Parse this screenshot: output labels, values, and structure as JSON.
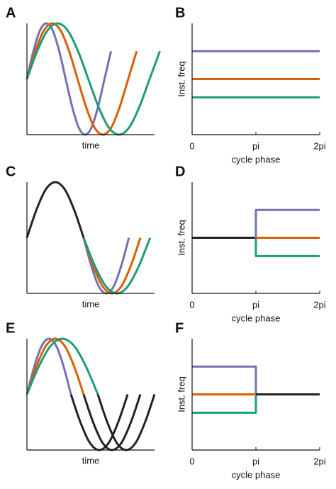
{
  "chart_data": [
    {
      "type": "line",
      "panel": "A",
      "xlabel": "time",
      "smooth": true,
      "xlim": [
        0,
        1
      ],
      "ylim": [
        -1,
        1
      ],
      "series": [
        {
          "color": "#7570b3",
          "x": [
            0,
            0.0507,
            0.1013,
            0.152,
            0.2026,
            0.2533,
            0.304,
            0.3546,
            0.4053,
            0.4559,
            0.5066,
            0.5572,
            0.6079,
            0.6586
          ],
          "values": [
            0,
            0.5,
            0.87,
            1,
            0.87,
            0.5,
            0,
            -0.5,
            -0.87,
            -1,
            -0.87,
            -0.5,
            0,
            0.5
          ]
        },
        {
          "color": "#d95f02",
          "x": [
            0,
            0.0661,
            0.1323,
            0.1984,
            0.2646,
            0.3307,
            0.3968,
            0.463,
            0.5291,
            0.5952,
            0.6614,
            0.7275,
            0.7937,
            0.8598
          ],
          "values": [
            0,
            0.5,
            0.87,
            1,
            0.87,
            0.5,
            0,
            -0.5,
            -0.87,
            -1,
            -0.87,
            -0.5,
            0,
            0.5
          ]
        },
        {
          "color": "#1b9e77",
          "x": [
            0,
            0.0801,
            0.1603,
            0.2404,
            0.3205,
            0.4006,
            0.4808,
            0.5609,
            0.641,
            0.7212,
            0.8013,
            0.8814,
            0.9615,
            1.0417
          ],
          "values": [
            0,
            0.5,
            0.87,
            1,
            0.87,
            0.5,
            0,
            -0.5,
            -0.87,
            -1,
            -0.87,
            -0.5,
            0,
            0.5
          ]
        }
      ]
    },
    {
      "type": "line",
      "panel": "B",
      "xlabel": "cycle phase",
      "ylabel": "Inst. freq",
      "xlim": [
        0,
        6.2832
      ],
      "ylim": [
        0,
        2
      ],
      "xticks": [
        {
          "value": 0,
          "label": "0"
        },
        {
          "value": 3.1416,
          "label": "pi"
        },
        {
          "value": 6.2832,
          "label": "2pi"
        }
      ],
      "series": [
        {
          "color": "#7570b3",
          "x": [
            0,
            6.2832
          ],
          "values": [
            1.5,
            1.5
          ]
        },
        {
          "color": "#d95f02",
          "x": [
            0,
            6.2832
          ],
          "values": [
            1,
            1
          ]
        },
        {
          "color": "#1b9e77",
          "x": [
            0,
            6.2832
          ],
          "values": [
            0.67,
            0.67
          ]
        }
      ]
    },
    {
      "type": "line",
      "panel": "C",
      "xlabel": "time",
      "smooth": true,
      "xlim": [
        0,
        1
      ],
      "ylim": [
        -1,
        1
      ],
      "series": [
        {
          "color": "#7570b3",
          "x": [
            0.4444,
            0.5035,
            0.5626,
            0.6217,
            0.6808,
            0.7399,
            0.799
          ],
          "values": [
            0,
            -0.5,
            -0.87,
            -1,
            -0.87,
            -0.5,
            0
          ]
        },
        {
          "color": "#d95f02",
          "x": [
            0.4444,
            0.5185,
            0.5926,
            0.6667,
            0.7407,
            0.8148,
            0.8889
          ],
          "values": [
            0,
            -0.5,
            -0.87,
            -1,
            -0.87,
            -0.5,
            0
          ]
        },
        {
          "color": "#1b9e77",
          "x": [
            0.4444,
            0.5312,
            0.6181,
            0.7049,
            0.7917,
            0.8785,
            0.9653
          ],
          "values": [
            0,
            -0.5,
            -0.87,
            -1,
            -0.87,
            -0.5,
            0
          ]
        },
        {
          "color": "#222222",
          "x": [
            0,
            0.0741,
            0.1481,
            0.2222,
            0.2963,
            0.3704,
            0.4444
          ],
          "values": [
            0,
            0.5,
            0.87,
            1,
            0.87,
            0.5,
            0
          ]
        }
      ]
    },
    {
      "type": "line",
      "panel": "D",
      "xlabel": "cycle phase",
      "ylabel": "Inst. freq",
      "xlim": [
        0,
        6.2832
      ],
      "ylim": [
        0,
        2
      ],
      "xticks": [
        {
          "value": 0,
          "label": "0"
        },
        {
          "value": 3.1416,
          "label": "pi"
        },
        {
          "value": 6.2832,
          "label": "2pi"
        }
      ],
      "series": [
        {
          "color": "#222222",
          "x": [
            0,
            3.1416
          ],
          "values": [
            1,
            1
          ]
        },
        {
          "color": "#7570b3",
          "x": [
            3.1416,
            3.1416,
            6.2832
          ],
          "values": [
            1,
            1.5,
            1.5
          ]
        },
        {
          "color": "#1b9e77",
          "x": [
            3.1416,
            3.1416,
            6.2832
          ],
          "values": [
            1,
            0.67,
            0.67
          ]
        },
        {
          "color": "#d95f02",
          "x": [
            3.1416,
            6.2832
          ],
          "values": [
            1,
            1
          ]
        }
      ]
    },
    {
      "type": "line",
      "panel": "E",
      "xlabel": "time",
      "smooth": true,
      "xlim": [
        0,
        1
      ],
      "ylim": [
        -1,
        1
      ],
      "series": [
        {
          "color": "#222222",
          "x": [
            0.3448,
            0.4189,
            0.4929,
            0.567,
            0.6411,
            0.7152,
            0.7892
          ],
          "values": [
            0,
            -0.5,
            -0.87,
            -1,
            -0.87,
            -0.5,
            0
          ]
        },
        {
          "color": "#222222",
          "x": [
            0.4444,
            0.5185,
            0.5926,
            0.6667,
            0.7407,
            0.8148,
            0.8889
          ],
          "values": [
            0,
            -0.5,
            -0.87,
            -1,
            -0.87,
            -0.5,
            0
          ]
        },
        {
          "color": "#222222",
          "x": [
            0.5556,
            0.6296,
            0.7037,
            0.7778,
            0.8519,
            0.9259,
            1.0
          ],
          "values": [
            0,
            -0.5,
            -0.87,
            -1,
            -0.87,
            -0.5,
            0
          ]
        },
        {
          "color": "#7570b3",
          "x": [
            0,
            0.0575,
            0.1149,
            0.1724,
            0.2299,
            0.2874,
            0.3448
          ],
          "values": [
            0,
            0.5,
            0.87,
            1,
            0.87,
            0.5,
            0
          ]
        },
        {
          "color": "#d95f02",
          "x": [
            0,
            0.0741,
            0.1481,
            0.2222,
            0.2963,
            0.3704,
            0.4444
          ],
          "values": [
            0,
            0.5,
            0.87,
            1,
            0.87,
            0.5,
            0
          ]
        },
        {
          "color": "#1b9e77",
          "x": [
            0,
            0.0926,
            0.1852,
            0.2778,
            0.3704,
            0.463,
            0.5556
          ],
          "values": [
            0,
            0.5,
            0.87,
            1,
            0.87,
            0.5,
            0
          ]
        }
      ]
    },
    {
      "type": "line",
      "panel": "F",
      "xlabel": "cycle phase",
      "ylabel": "Inst. freq",
      "xlim": [
        0,
        6.2832
      ],
      "ylim": [
        0,
        2
      ],
      "xticks": [
        {
          "value": 0,
          "label": "0"
        },
        {
          "value": 3.1416,
          "label": "pi"
        },
        {
          "value": 6.2832,
          "label": "2pi"
        }
      ],
      "series": [
        {
          "color": "#7570b3",
          "x": [
            0,
            3.1416,
            3.1416
          ],
          "values": [
            1.5,
            1.5,
            1
          ]
        },
        {
          "color": "#1b9e77",
          "x": [
            0,
            3.1416,
            3.1416
          ],
          "values": [
            0.67,
            0.67,
            1
          ]
        },
        {
          "color": "#d95f02",
          "x": [
            0,
            3.1416
          ],
          "values": [
            1,
            1
          ]
        },
        {
          "color": "#222222",
          "x": [
            3.1416,
            6.2832
          ],
          "values": [
            1,
            1
          ]
        }
      ]
    }
  ]
}
